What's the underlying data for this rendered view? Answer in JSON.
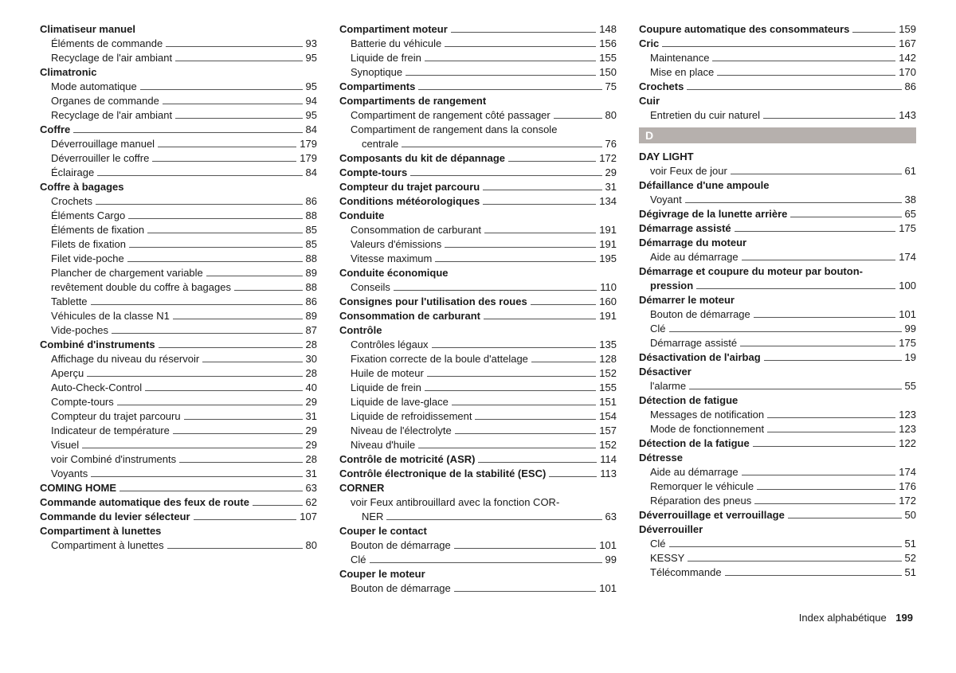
{
  "footer": {
    "label": "Index alphabétique",
    "page": "199"
  },
  "sectionD": "D",
  "col1": [
    {
      "type": "head",
      "label": "Climatiseur manuel"
    },
    {
      "type": "sub",
      "label": "Éléments de commande",
      "page": "93"
    },
    {
      "type": "sub",
      "label": "Recyclage de l'air ambiant",
      "page": "95"
    },
    {
      "type": "head",
      "label": "Climatronic"
    },
    {
      "type": "sub",
      "label": "Mode automatique",
      "page": "95"
    },
    {
      "type": "sub",
      "label": "Organes de commande",
      "page": "94"
    },
    {
      "type": "sub",
      "label": "Recyclage de l'air ambiant",
      "page": "95"
    },
    {
      "type": "headrow",
      "label": "Coffre",
      "page": "84"
    },
    {
      "type": "sub",
      "label": "Déverrouillage manuel",
      "page": "179"
    },
    {
      "type": "sub",
      "label": "Déverrouiller le coffre",
      "page": "179"
    },
    {
      "type": "sub",
      "label": "Éclairage",
      "page": "84"
    },
    {
      "type": "head",
      "label": "Coffre à bagages"
    },
    {
      "type": "sub",
      "label": "Crochets",
      "page": "86"
    },
    {
      "type": "sub",
      "label": "Éléments Cargo",
      "page": "88"
    },
    {
      "type": "sub",
      "label": "Éléments de fixation",
      "page": "85"
    },
    {
      "type": "sub",
      "label": "Filets de fixation",
      "page": "85"
    },
    {
      "type": "sub",
      "label": "Filet vide-poche",
      "page": "88"
    },
    {
      "type": "sub",
      "label": "Plancher de chargement variable",
      "page": "89"
    },
    {
      "type": "sub",
      "label": "revêtement double du coffre à bagages",
      "page": "88"
    },
    {
      "type": "sub",
      "label": "Tablette",
      "page": "86"
    },
    {
      "type": "sub",
      "label": "Véhicules de la classe N1",
      "page": "89"
    },
    {
      "type": "sub",
      "label": "Vide-poches",
      "page": "87"
    },
    {
      "type": "headrow",
      "label": "Combiné d'instruments",
      "page": "28"
    },
    {
      "type": "sub",
      "label": "Affichage du niveau du réservoir",
      "page": "30"
    },
    {
      "type": "sub",
      "label": "Aperçu",
      "page": "28"
    },
    {
      "type": "sub",
      "label": "Auto-Check-Control",
      "page": "40"
    },
    {
      "type": "sub",
      "label": "Compte-tours",
      "page": "29"
    },
    {
      "type": "sub",
      "label": "Compteur du trajet parcouru",
      "page": "31"
    },
    {
      "type": "sub",
      "label": "Indicateur de température",
      "page": "29"
    },
    {
      "type": "sub",
      "label": "Visuel",
      "page": "29"
    },
    {
      "type": "sub",
      "label": "voir Combiné d'instruments",
      "page": "28"
    },
    {
      "type": "sub",
      "label": "Voyants",
      "page": "31"
    },
    {
      "type": "headrow",
      "label": "COMING HOME",
      "page": "63"
    },
    {
      "type": "headrow",
      "label": "Commande automatique des feux de route",
      "page": "62"
    },
    {
      "type": "headrow",
      "label": "Commande du levier sélecteur",
      "page": "107"
    },
    {
      "type": "head",
      "label": "Compartiment à lunettes"
    },
    {
      "type": "sub",
      "label": "Compartiment à lunettes",
      "page": "80"
    }
  ],
  "col2": [
    {
      "type": "headrow",
      "label": "Compartiment moteur",
      "page": "148"
    },
    {
      "type": "sub",
      "label": "Batterie du véhicule",
      "page": "156"
    },
    {
      "type": "sub",
      "label": "Liquide de frein",
      "page": "155"
    },
    {
      "type": "sub",
      "label": "Synoptique",
      "page": "150"
    },
    {
      "type": "headrow",
      "label": "Compartiments",
      "page": "75"
    },
    {
      "type": "head",
      "label": "Compartiments de rangement"
    },
    {
      "type": "sub",
      "label": "Compartiment de rangement côté passager",
      "page": "80"
    },
    {
      "type": "subwrap",
      "label1": "Compartiment de rangement dans la console",
      "label2": "centrale",
      "page": "76"
    },
    {
      "type": "headrow",
      "label": "Composants du kit de dépannage",
      "page": "172"
    },
    {
      "type": "headrow",
      "label": "Compte-tours",
      "page": "29"
    },
    {
      "type": "headrow",
      "label": "Compteur du trajet parcouru",
      "page": "31"
    },
    {
      "type": "headrow",
      "label": "Conditions météorologiques",
      "page": "134"
    },
    {
      "type": "head",
      "label": "Conduite"
    },
    {
      "type": "sub",
      "label": "Consommation de carburant",
      "page": "191"
    },
    {
      "type": "sub",
      "label": "Valeurs d'émissions",
      "page": "191"
    },
    {
      "type": "sub",
      "label": "Vitesse maximum",
      "page": "195"
    },
    {
      "type": "head",
      "label": "Conduite économique"
    },
    {
      "type": "sub",
      "label": "Conseils",
      "page": "110"
    },
    {
      "type": "headrow",
      "label": "Consignes pour l'utilisation des roues",
      "page": "160"
    },
    {
      "type": "headrow",
      "label": "Consommation de carburant",
      "page": "191"
    },
    {
      "type": "head",
      "label": "Contrôle"
    },
    {
      "type": "sub",
      "label": "Contrôles légaux",
      "page": "135"
    },
    {
      "type": "sub",
      "label": "Fixation correcte de la boule d'attelage",
      "page": "128"
    },
    {
      "type": "sub",
      "label": "Huile de moteur",
      "page": "152"
    },
    {
      "type": "sub",
      "label": "Liquide de frein",
      "page": "155"
    },
    {
      "type": "sub",
      "label": "Liquide de lave-glace",
      "page": "151"
    },
    {
      "type": "sub",
      "label": "Liquide de refroidissement",
      "page": "154"
    },
    {
      "type": "sub",
      "label": "Niveau de l'électrolyte",
      "page": "157"
    },
    {
      "type": "sub",
      "label": "Niveau d'huile",
      "page": "152"
    },
    {
      "type": "headrow",
      "label": "Contrôle de motricité (ASR)",
      "page": "114"
    },
    {
      "type": "headrow",
      "label": "Contrôle électronique de la stabilité (ESC)",
      "page": "113"
    },
    {
      "type": "head",
      "label": "CORNER"
    },
    {
      "type": "subwrap",
      "label1": "voir Feux antibrouillard avec la fonction COR-",
      "label2": "NER",
      "page": "63"
    },
    {
      "type": "head",
      "label": "Couper le contact"
    },
    {
      "type": "sub",
      "label": "Bouton de démarrage",
      "page": "101"
    },
    {
      "type": "sub",
      "label": "Clé",
      "page": "99"
    },
    {
      "type": "head",
      "label": "Couper le moteur"
    },
    {
      "type": "sub",
      "label": "Bouton de démarrage",
      "page": "101"
    }
  ],
  "col3a": [
    {
      "type": "headrow",
      "label": "Coupure automatique des consommateurs",
      "page": "159"
    },
    {
      "type": "headrow",
      "label": "Cric",
      "page": "167"
    },
    {
      "type": "sub",
      "label": "Maintenance",
      "page": "142"
    },
    {
      "type": "sub",
      "label": "Mise en place",
      "page": "170"
    },
    {
      "type": "headrow",
      "label": "Crochets",
      "page": "86"
    },
    {
      "type": "head",
      "label": "Cuir"
    },
    {
      "type": "sub",
      "label": "Entretien du cuir naturel",
      "page": "143"
    }
  ],
  "col3b": [
    {
      "type": "head",
      "label": "DAY LIGHT"
    },
    {
      "type": "sub",
      "label": "voir Feux de jour",
      "page": "61"
    },
    {
      "type": "head",
      "label": "Défaillance d'une ampoule"
    },
    {
      "type": "sub",
      "label": "Voyant",
      "page": "38"
    },
    {
      "type": "headrow",
      "label": "Dégivrage de la lunette arrière",
      "page": "65"
    },
    {
      "type": "headrow",
      "label": "Démarrage assisté",
      "page": "175"
    },
    {
      "type": "head",
      "label": "Démarrage du moteur"
    },
    {
      "type": "sub",
      "label": "Aide au démarrage",
      "page": "174"
    },
    {
      "type": "headwrap",
      "label1": "Démarrage et coupure du moteur par bouton-",
      "label2": "pression",
      "page": "100"
    },
    {
      "type": "head",
      "label": "Démarrer le moteur"
    },
    {
      "type": "sub",
      "label": "Bouton de démarrage",
      "page": "101"
    },
    {
      "type": "sub",
      "label": "Clé",
      "page": "99"
    },
    {
      "type": "sub",
      "label": "Démarrage assisté",
      "page": "175"
    },
    {
      "type": "headrow",
      "label": "Désactivation de l'airbag",
      "page": "19"
    },
    {
      "type": "head",
      "label": "Désactiver"
    },
    {
      "type": "sub",
      "label": "l'alarme",
      "page": "55"
    },
    {
      "type": "head",
      "label": "Détection de fatigue"
    },
    {
      "type": "sub",
      "label": "Messages de notification",
      "page": "123"
    },
    {
      "type": "sub",
      "label": "Mode de fonctionnement",
      "page": "123"
    },
    {
      "type": "headrow",
      "label": "Détection de la fatigue",
      "page": "122"
    },
    {
      "type": "head",
      "label": "Détresse"
    },
    {
      "type": "sub",
      "label": "Aide au démarrage",
      "page": "174"
    },
    {
      "type": "sub",
      "label": "Remorquer le véhicule",
      "page": "176"
    },
    {
      "type": "sub",
      "label": "Réparation des pneus",
      "page": "172"
    },
    {
      "type": "headrow",
      "label": "Déverrouillage et verrouillage",
      "page": "50"
    },
    {
      "type": "head",
      "label": "Déverrouiller"
    },
    {
      "type": "sub",
      "label": "Clé",
      "page": "51"
    },
    {
      "type": "sub",
      "label": "KESSY",
      "page": "52"
    },
    {
      "type": "sub",
      "label": "Télécommande",
      "page": "51"
    }
  ]
}
